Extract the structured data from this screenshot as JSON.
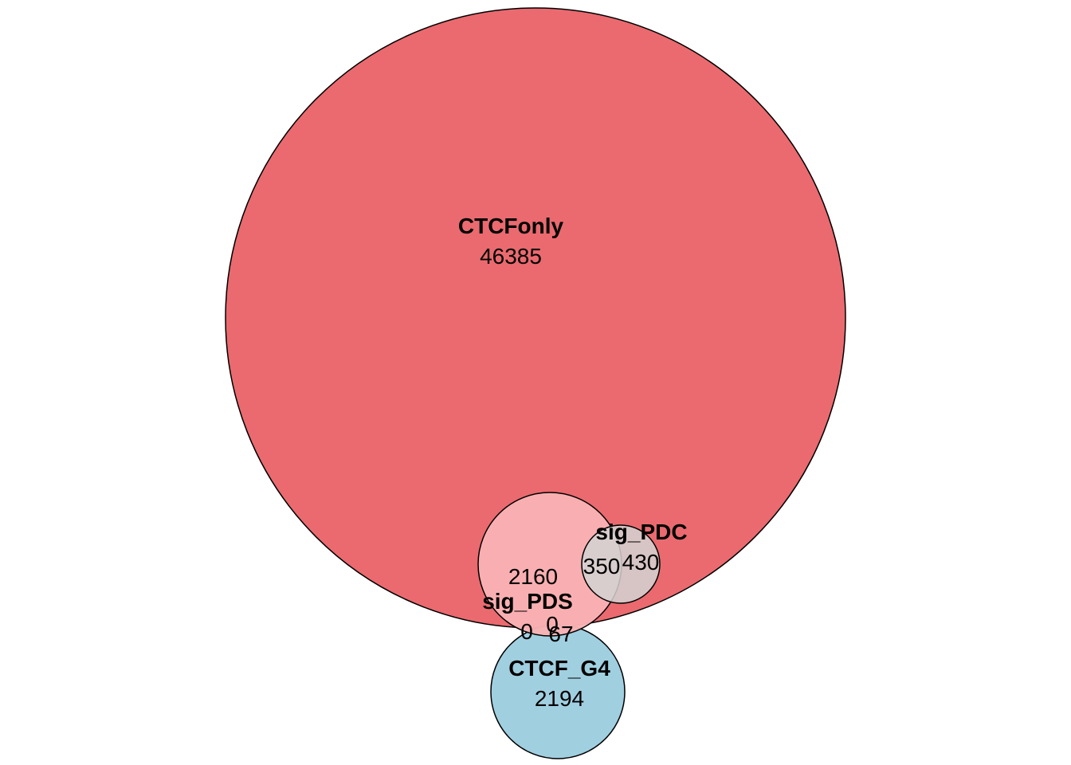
{
  "diagram": {
    "type": "euler",
    "sets": [
      {
        "id": "ctcfonly",
        "name": "CTCFonly",
        "count": "46385",
        "fill": "#ea6a6f"
      },
      {
        "id": "sig_pds",
        "name": "sig_PDS",
        "fill": "#f9b2b4"
      },
      {
        "id": "sig_pdc",
        "name": "sig_PDC",
        "count": "430",
        "fill": "#d3d3d3"
      },
      {
        "id": "ctcf_g4",
        "name": "CTCF_G4",
        "count": "2194",
        "fill": "#a0cfe0"
      }
    ],
    "region_counts": {
      "pds_main": "2160",
      "pds_pdc": "350",
      "pds_g4_left": "0",
      "pds_g4_mid": "0",
      "pds_g4_right": "67"
    }
  }
}
